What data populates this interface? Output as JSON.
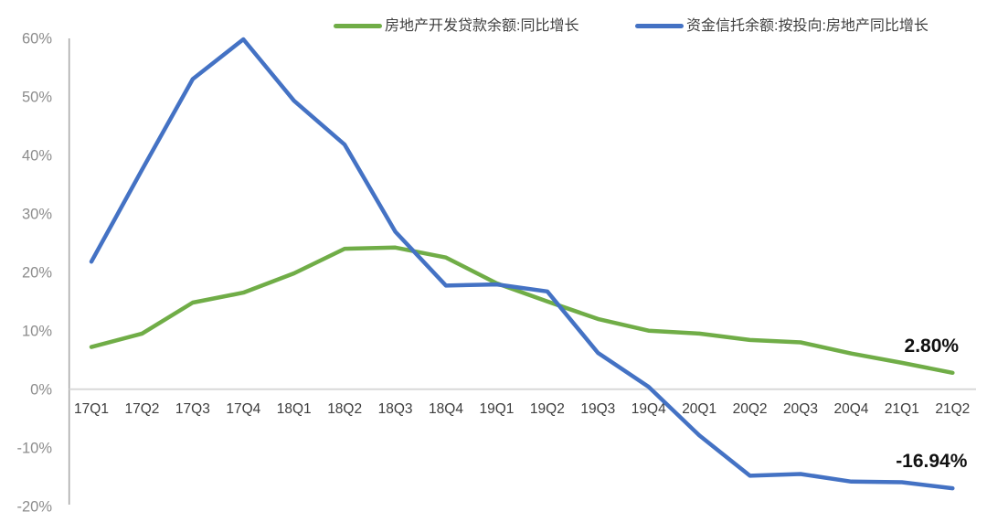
{
  "chart_data": {
    "type": "line",
    "title": "",
    "xlabel": "",
    "ylabel": "",
    "categories": [
      "17Q1",
      "17Q2",
      "17Q3",
      "17Q4",
      "18Q1",
      "18Q2",
      "18Q3",
      "18Q4",
      "19Q1",
      "19Q2",
      "19Q3",
      "19Q4",
      "20Q1",
      "20Q2",
      "20Q3",
      "20Q4",
      "21Q1",
      "21Q2"
    ],
    "series": [
      {
        "name": "房地产开发贷款余额:同比增长",
        "color": "#70AD47",
        "values": [
          7.2,
          9.5,
          14.8,
          16.5,
          19.8,
          24.0,
          24.2,
          22.5,
          18.1,
          15.0,
          12.0,
          10.0,
          9.5,
          8.4,
          8.0,
          6.1,
          4.5,
          2.8
        ],
        "end_label": "2.80%"
      },
      {
        "name": "资金信托余额:按投向:房地产同比增长",
        "color": "#4472C4",
        "values": [
          21.8,
          37.5,
          53.0,
          59.8,
          49.3,
          41.8,
          26.9,
          17.7,
          17.9,
          16.7,
          6.2,
          0.4,
          -7.9,
          -14.8,
          -14.5,
          -15.8,
          -15.9,
          -16.94
        ],
        "end_label": "-16.94%"
      }
    ],
    "y_ticks": [
      60,
      50,
      40,
      30,
      20,
      10,
      0,
      -10,
      -20
    ],
    "y_tick_labels": [
      "60%",
      "50%",
      "40%",
      "30%",
      "20%",
      "10%",
      "0%",
      "-10%",
      "-20%"
    ],
    "ylim": [
      -20,
      60
    ],
    "grid": false,
    "legend_position": "top"
  },
  "colors": {
    "background": "#ffffff",
    "series_green": "#70AD47",
    "series_blue": "#4472C4",
    "axis_line": "#ababab",
    "zero_line": "#d9d9d9",
    "y_tick_text": "#8c8c8c",
    "x_tick_text": "#3d3d3d",
    "data_label_text": "#111111",
    "legend_text": "#404040"
  }
}
